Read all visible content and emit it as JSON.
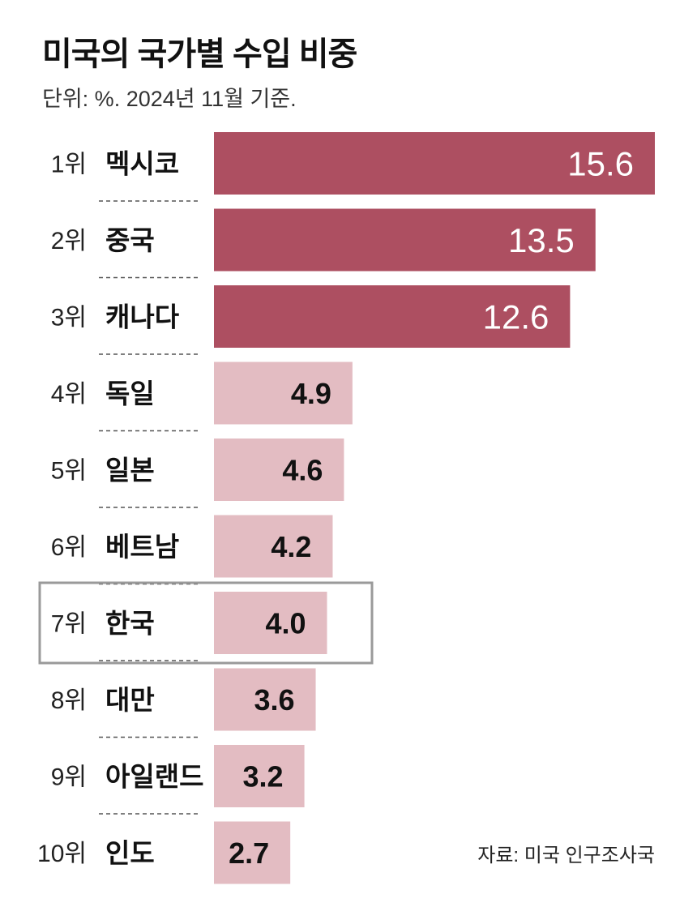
{
  "header": {
    "title": "미국의 국가별 수입 비중",
    "subtitle": "단위: %. 2024년 11월 기준."
  },
  "source": "자료: 미국 인구조사국",
  "colors": {
    "top_bar": "#ad4f61",
    "other_bar": "#e3bcc2",
    "highlight_border": "#9a9a9a",
    "divider": "#555555"
  },
  "chart_data": {
    "type": "bar",
    "orientation": "horizontal",
    "title": "미국의 국가별 수입 비중",
    "subtitle": "단위: %. 2024년 11월 기준.",
    "categories": [
      "멕시코",
      "중국",
      "캐나다",
      "독일",
      "일본",
      "베트남",
      "한국",
      "대만",
      "아일랜드",
      "인도"
    ],
    "ranks": [
      "1위",
      "2위",
      "3위",
      "4위",
      "5위",
      "6위",
      "7위",
      "8위",
      "9위",
      "10위"
    ],
    "values": [
      15.6,
      13.5,
      12.6,
      4.9,
      4.6,
      4.2,
      4.0,
      3.6,
      3.2,
      2.7
    ],
    "value_labels": [
      "15.6",
      "13.5",
      "12.6",
      "4.9",
      "4.6",
      "4.2",
      "4.0",
      "3.6",
      "3.2",
      "2.7"
    ],
    "highlighted_category": "한국",
    "top_n_emphasized": 3,
    "xlim": [
      0,
      15.6
    ],
    "grid": false,
    "legend": "none",
    "source": "자료: 미국 인구조사국"
  }
}
